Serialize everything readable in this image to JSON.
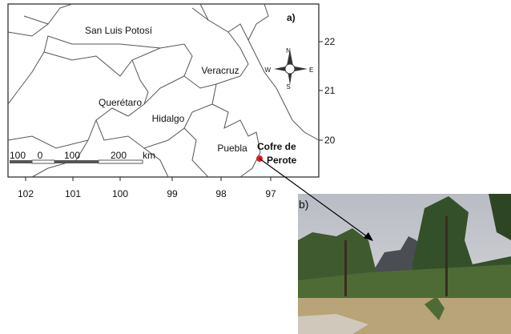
{
  "map": {
    "panel_label": "a)",
    "regions": [
      "San Luis Potosí",
      "Querétaro",
      "Hidalgo",
      "Veracruz",
      "Puebla"
    ],
    "site": [
      "Cofre de",
      "Perote"
    ],
    "lat_ticks": [
      "22",
      "21",
      "20"
    ],
    "lon_ticks": [
      "102",
      "101",
      "100",
      "99",
      "98",
      "97"
    ],
    "scale_labels": [
      "100",
      "0",
      "100",
      "200"
    ],
    "scale_unit": "km",
    "compass": {
      "n": "N",
      "s": "S",
      "e": "E",
      "w": "W"
    }
  },
  "photo": {
    "panel_label": "b)"
  }
}
